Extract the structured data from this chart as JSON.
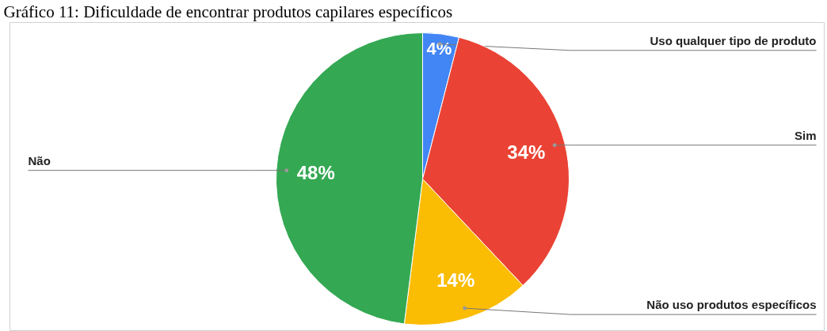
{
  "chart_data": {
    "type": "pie",
    "title": "Gráfico 11: Dificuldade de encontrar produtos capilares específicos",
    "categories": [
      "Uso qualquer tipo de produto",
      "Sim",
      "Não uso produtos específicos",
      "Não"
    ],
    "values": [
      4,
      34,
      14,
      48
    ],
    "value_labels": [
      "4%",
      "34%",
      "14%",
      "48%"
    ],
    "colors": [
      "#4285f4",
      "#ea4335",
      "#fbbc04",
      "#34a853"
    ]
  }
}
